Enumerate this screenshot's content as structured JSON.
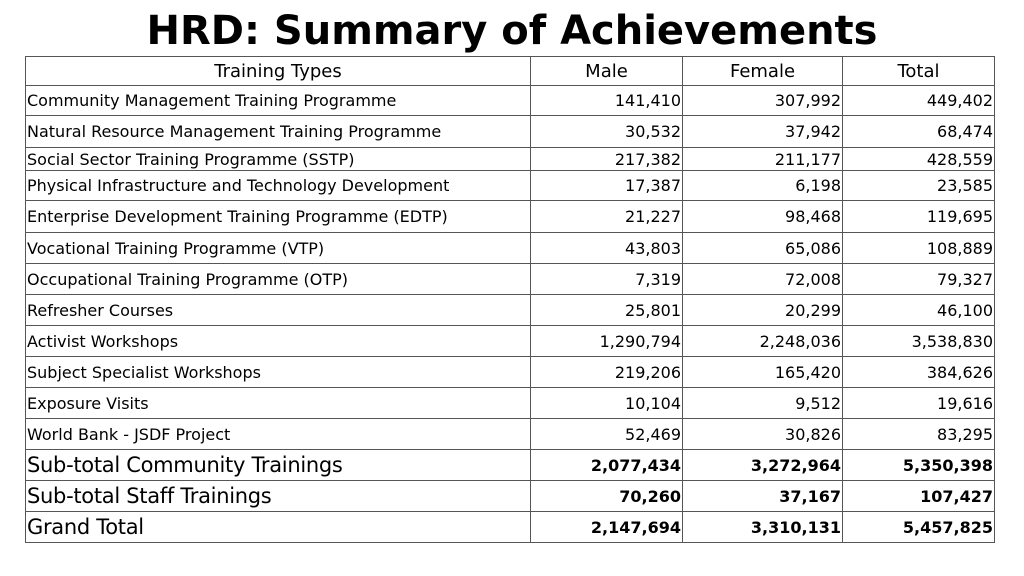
{
  "title": "HRD: Summary of Achievements",
  "table": {
    "headers": [
      "Training Types",
      "Male",
      "Female",
      "Total"
    ],
    "rows": [
      {
        "type": "Community Management Training Programme",
        "male": "141,410",
        "female": "307,992",
        "total": "449,402"
      },
      {
        "type": "Natural Resource Management Training Programme",
        "male": "30,532",
        "female": "37,942",
        "total": "68,474"
      },
      {
        "type": "Social Sector Training  Programme (SSTP)",
        "male": "217,382",
        "female": "211,177",
        "total": "428,559"
      },
      {
        "type": "Physical Infrastructure and Technology Development",
        "male": "17,387",
        "female": "6,198",
        "total": "23,585"
      },
      {
        "type": "Enterprise Development Training Programme (EDTP)",
        "male": "21,227",
        "female": "98,468",
        "total": "119,695"
      },
      {
        "type": "Vocational Training Programme (VTP)",
        "male": "43,803",
        "female": "65,086",
        "total": "108,889"
      },
      {
        "type": "Occupational Training Programme (OTP)",
        "male": "7,319",
        "female": "72,008",
        "total": "79,327"
      },
      {
        "type": "Refresher Courses",
        "male": "25,801",
        "female": "20,299",
        "total": "46,100"
      },
      {
        "type": "Activist Workshops",
        "male": "1,290,794",
        "female": "2,248,036",
        "total": "3,538,830"
      },
      {
        "type": "Subject Specialist Workshops",
        "male": "219,206",
        "female": "165,420",
        "total": "384,626"
      },
      {
        "type": "Exposure Visits",
        "male": "10,104",
        "female": "9,512",
        "total": "19,616"
      },
      {
        "type": "World Bank - JSDF Project",
        "male": "52,469",
        "female": "30,826",
        "total": "83,295"
      }
    ],
    "summary_rows": [
      {
        "type": "Sub-total Community Trainings",
        "male": "2,077,434",
        "female": "3,272,964",
        "total": "5,350,398"
      },
      {
        "type": "Sub-total Staff Trainings",
        "male": "70,260",
        "female": "37,167",
        "total": "107,427"
      },
      {
        "type": "Grand Total",
        "male": "2,147,694",
        "female": "3,310,131",
        "total": "5,457,825"
      }
    ]
  }
}
